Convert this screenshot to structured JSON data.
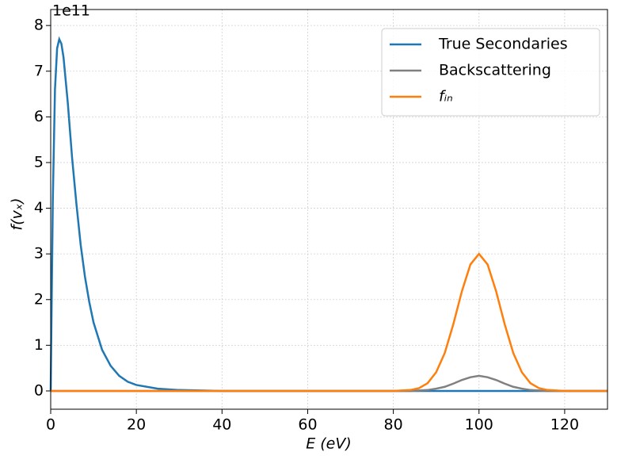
{
  "chart_data": {
    "type": "line",
    "offset_label": "1e11",
    "xlabel": "E (eV)",
    "ylabel": "f(vₓ)",
    "x": [
      0,
      0.5,
      1,
      1.5,
      2,
      2.5,
      3,
      4,
      5,
      6,
      7,
      8,
      9,
      10,
      12,
      14,
      16,
      18,
      20,
      25,
      30,
      35,
      40,
      60,
      80,
      84,
      86,
      88,
      90,
      92,
      94,
      96,
      98,
      100,
      102,
      104,
      106,
      108,
      110,
      112,
      114,
      116,
      120,
      130
    ],
    "series": [
      {
        "name": "True Secondaries",
        "color": "#1f77b4",
        "values": [
          0,
          4.2,
          6.6,
          7.5,
          7.7,
          7.6,
          7.3,
          6.3,
          5.1,
          4.1,
          3.2,
          2.5,
          1.95,
          1.5,
          0.9,
          0.55,
          0.33,
          0.2,
          0.13,
          0.05,
          0.02,
          0.01,
          0,
          0,
          0,
          0,
          0,
          0,
          0,
          0,
          0,
          0,
          0,
          0,
          0,
          0,
          0,
          0,
          0,
          0,
          0,
          0,
          0,
          0
        ]
      },
      {
        "name": "Backscattering",
        "color": "#808080",
        "values": [
          0,
          0,
          0,
          0,
          0,
          0,
          0,
          0,
          0,
          0,
          0,
          0,
          0,
          0,
          0,
          0,
          0,
          0,
          0,
          0,
          0,
          0,
          0,
          0,
          0,
          0,
          0.01,
          0.02,
          0.05,
          0.09,
          0.16,
          0.24,
          0.3,
          0.33,
          0.3,
          0.24,
          0.16,
          0.09,
          0.05,
          0.02,
          0.01,
          0,
          0,
          0
        ]
      },
      {
        "name": "fᵢₙ",
        "color": "#ff7f0e",
        "values": [
          0,
          0,
          0,
          0,
          0,
          0,
          0,
          0,
          0,
          0,
          0,
          0,
          0,
          0,
          0,
          0,
          0,
          0,
          0,
          0,
          0,
          0,
          0,
          0,
          0,
          0.02,
          0.06,
          0.17,
          0.41,
          0.83,
          1.46,
          2.18,
          2.77,
          3,
          2.77,
          2.18,
          1.46,
          0.83,
          0.41,
          0.17,
          0.06,
          0.02,
          0,
          0
        ]
      }
    ],
    "xlim": [
      0,
      130
    ],
    "xticks": [
      0,
      20,
      40,
      60,
      80,
      100,
      120
    ],
    "ylim": [
      -0.4,
      8.35
    ],
    "yticks": [
      0,
      1,
      2,
      3,
      4,
      5,
      6,
      7,
      8
    ],
    "grid": true,
    "legend": "upper right"
  }
}
